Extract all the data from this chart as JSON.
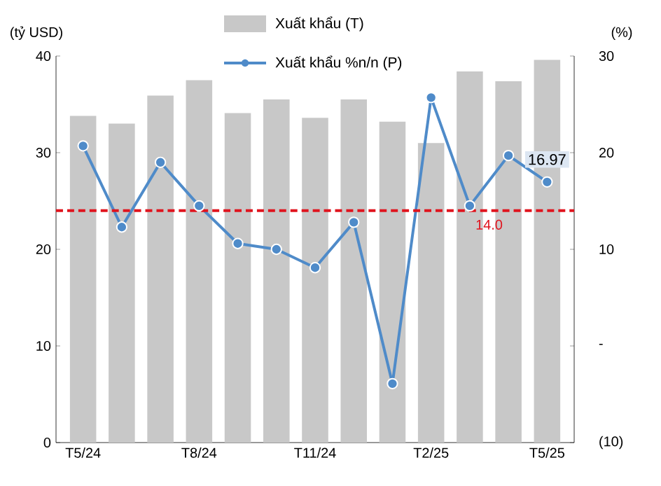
{
  "chart_data": {
    "type": "bar",
    "ylabel": "(tỷ USD)",
    "y2label": "(%)",
    "categories": [
      "T5/24",
      null,
      null,
      "T8/24",
      null,
      null,
      "T11/24",
      null,
      null,
      "T2/25",
      null,
      null,
      "T5/25"
    ],
    "series": [
      {
        "name": "Xuất khẩu (T)",
        "color": "#c8c8c8",
        "values": [
          33.8,
          33.0,
          35.9,
          37.5,
          34.1,
          35.5,
          33.6,
          35.5,
          33.2,
          31.0,
          38.4,
          37.4,
          39.6
        ]
      },
      {
        "name": "Xuất khẩu %n/n (P)",
        "type": "line",
        "axis": "y2",
        "color": "#4f8bc9",
        "marker": "circle",
        "values": [
          20.7,
          12.3,
          19.0,
          14.5,
          10.6,
          10.0,
          8.1,
          12.8,
          -3.9,
          25.7,
          14.5,
          19.7,
          16.97
        ],
        "value_labels": [
          null,
          null,
          null,
          null,
          null,
          null,
          null,
          null,
          null,
          null,
          null,
          null,
          "16.97"
        ]
      }
    ],
    "ylim": [
      0,
      40
    ],
    "yticks": [
      0,
      10,
      20,
      30,
      40
    ],
    "y2lim": [
      -10,
      30
    ],
    "y2ticks": [
      {
        "value": -10,
        "label": "(10)"
      },
      {
        "value": 0,
        "label": "-"
      },
      10,
      20,
      30
    ],
    "ref_lines": [
      {
        "axis": "y2",
        "value": 14.0,
        "label": "14.0",
        "color": "#e0141e",
        "line_style": "dashed"
      }
    ],
    "grid": false,
    "legend": "top"
  }
}
